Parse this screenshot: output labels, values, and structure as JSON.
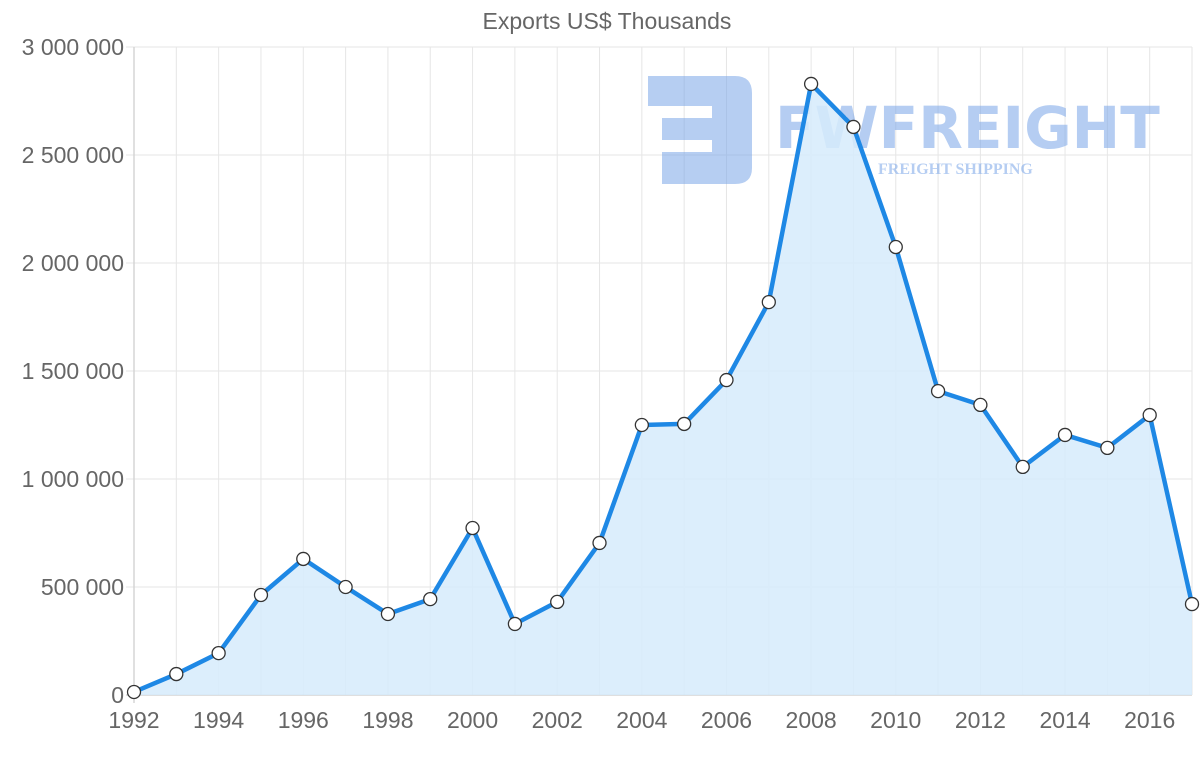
{
  "chart_data": {
    "type": "area",
    "title": "Exports US$ Thousands",
    "xlabel": "",
    "ylabel": "",
    "ylim": [
      0,
      3000000
    ],
    "yticks": [
      "0",
      "500 000",
      "1 000 000",
      "1 500 000",
      "2 000 000",
      "2 500 000",
      "3 000 000"
    ],
    "xticks": [
      "1992",
      "1994",
      "1996",
      "1998",
      "2000",
      "2002",
      "2004",
      "2006",
      "2008",
      "2010",
      "2012",
      "2014",
      "2016"
    ],
    "grid": true,
    "legend": "none",
    "x": [
      1992,
      1993,
      1994,
      1995,
      1996,
      1997,
      1998,
      1999,
      2000,
      2001,
      2002,
      2003,
      2004,
      2005,
      2006,
      2007,
      2008,
      2009,
      2010,
      2011,
      2012,
      2013,
      2014,
      2015,
      2016,
      2017
    ],
    "series": [
      {
        "name": "Exports US$ Thousands",
        "color": "#1e88e5",
        "fill": "#d6ebfb",
        "values": [
          14000,
          97000,
          194000,
          463000,
          630000,
          500000,
          375000,
          444000,
          773000,
          329000,
          431000,
          704000,
          1250000,
          1255000,
          1458000,
          1819000,
          2829000,
          2630000,
          2074000,
          1407000,
          1343000,
          1056000,
          1204000,
          1144000,
          1296000,
          421000
        ]
      }
    ]
  },
  "watermark": {
    "brand": "FWFREIGHT",
    "tagline": "FREIGHT SHIPPING"
  }
}
